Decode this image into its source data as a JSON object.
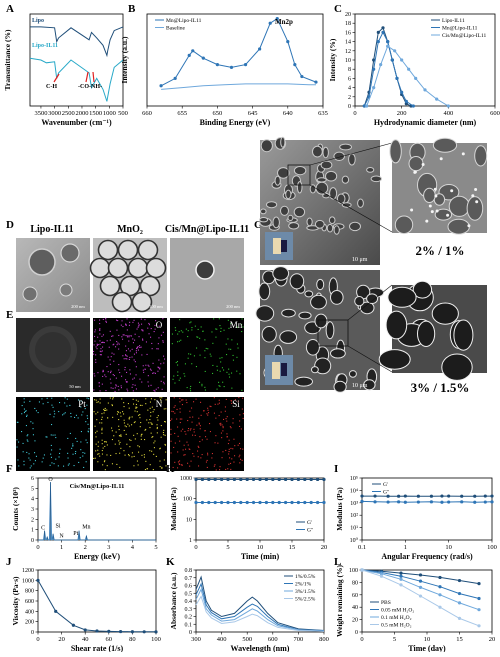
{
  "colors": {
    "dark": "#1f4e79",
    "mid": "#2e75b6",
    "light": "#6fa8dc",
    "pale": "#a9c8e8",
    "red": "#e02020",
    "magenta": "#c03cc8",
    "green": "#2fbf2f",
    "cyan": "#3fc6d4",
    "yellow": "#d6cf3a",
    "darkred": "#d03030"
  },
  "panel_letters": [
    "A",
    "B",
    "C",
    "D",
    "E",
    "F",
    "G",
    "H",
    "I",
    "J",
    "K",
    "L"
  ],
  "panelD": {
    "titles": [
      "Lipo-IL11",
      "MnO₂",
      "Cis/Mn@Lipo-IL11"
    ],
    "scales": [
      "200 nm",
      "100 nm",
      "200 nm"
    ]
  },
  "panelE": {
    "scale": "50 nm",
    "maps": [
      "O",
      "Mn",
      "Pt",
      "N",
      "Si"
    ]
  },
  "panelG": {
    "labels": [
      "2% / 1%",
      "3% / 1.5%"
    ],
    "scales": [
      "10 μm",
      "10 μm"
    ]
  },
  "chart_data": [
    {
      "panel": "A",
      "type": "line",
      "xlabel": "Wavenumber (cm⁻¹)",
      "ylabel": "Transmittance (%)",
      "xlim": [
        3900,
        500
      ],
      "xticks": [
        3500,
        3000,
        2500,
        2000,
        1500,
        1000,
        500
      ],
      "series": [
        {
          "name": "Lipo",
          "x": [
            3900,
            3500,
            3000,
            2925,
            2855,
            2400,
            1740,
            1650,
            1460,
            1230,
            1090,
            1060,
            970,
            820,
            500
          ],
          "y": [
            0.86,
            0.86,
            0.85,
            0.7,
            0.74,
            0.85,
            0.72,
            0.8,
            0.74,
            0.66,
            0.55,
            0.6,
            0.72,
            0.82,
            0.86
          ]
        },
        {
          "name": "Lipo-IL11",
          "x": [
            3900,
            3500,
            3300,
            3000,
            2925,
            2855,
            2400,
            1740,
            1650,
            1540,
            1460,
            1230,
            1090,
            1060,
            970,
            820,
            500
          ],
          "y": [
            0.52,
            0.5,
            0.47,
            0.48,
            0.3,
            0.36,
            0.5,
            0.36,
            0.2,
            0.26,
            0.3,
            0.18,
            0.05,
            0.1,
            0.24,
            0.42,
            0.5
          ]
        }
      ],
      "annotations": [
        "C-H",
        "-CO-NH-"
      ]
    },
    {
      "panel": "B",
      "type": "line",
      "xlabel": "Binding Energy (eV)",
      "ylabel": "Intensity (a.u.)",
      "xlim": [
        660,
        635
      ],
      "xticks": [
        660,
        655,
        650,
        645,
        640,
        635
      ],
      "series": [
        {
          "name": "Mn@Lipo-IL11",
          "x": [
            658,
            656,
            654,
            653.5,
            652,
            650,
            648,
            646,
            644,
            642.5,
            641.5,
            640,
            639,
            638,
            636
          ],
          "y": [
            0.22,
            0.3,
            0.55,
            0.6,
            0.52,
            0.45,
            0.42,
            0.45,
            0.62,
            0.9,
            0.95,
            0.7,
            0.45,
            0.32,
            0.26
          ]
        },
        {
          "name": "Baseline",
          "x": [
            658,
            655,
            652,
            649,
            646,
            643,
            640,
            637,
            636
          ],
          "y": [
            0.18,
            0.2,
            0.22,
            0.23,
            0.24,
            0.24,
            0.24,
            0.23,
            0.23
          ]
        }
      ],
      "annotations": [
        "Mn2p"
      ]
    },
    {
      "panel": "C",
      "type": "line",
      "xlabel": "Hydrodynamic diameter (nm)",
      "ylabel": "Intensity (%)",
      "xlim": [
        0,
        600
      ],
      "ylim": [
        0,
        20
      ],
      "xticks": [
        0,
        200,
        400,
        600
      ],
      "yticks": [
        0,
        2,
        4,
        6,
        8,
        10,
        12,
        14,
        16,
        18,
        20
      ],
      "series": [
        {
          "name": "Lipo-IL11",
          "x": [
            40,
            60,
            80,
            100,
            120,
            140,
            160,
            180,
            200,
            220,
            240
          ],
          "y": [
            0,
            3,
            10,
            16,
            17,
            14,
            10,
            6,
            2.5,
            0.5,
            0
          ]
        },
        {
          "name": "Mn@Lipo-IL11",
          "x": [
            40,
            60,
            80,
            100,
            120,
            140,
            160,
            180,
            200,
            220,
            250
          ],
          "y": [
            0,
            2,
            8,
            14,
            16,
            14,
            10,
            6,
            3,
            1,
            0
          ]
        },
        {
          "name": "Cis/Mn@Lipo-IL11",
          "x": [
            50,
            80,
            110,
            140,
            170,
            200,
            230,
            260,
            300,
            350,
            400
          ],
          "y": [
            0,
            4,
            9,
            13,
            12,
            10,
            8,
            6,
            3.5,
            1.5,
            0
          ]
        }
      ]
    },
    {
      "panel": "F",
      "type": "bar",
      "title": "Cis/Mn@Lipo-IL11",
      "xlabel": "Energy (keV)",
      "ylabel": "Counts (×10³)",
      "xlim": [
        0,
        5
      ],
      "ylim": [
        0,
        6
      ],
      "xticks": [
        0,
        1,
        2,
        3,
        4,
        5
      ],
      "yticks": [
        0,
        1,
        2,
        3,
        4,
        5,
        6
      ],
      "peaks": [
        {
          "label": "C",
          "x": 0.28,
          "y": 0.9
        },
        {
          "label": "O",
          "x": 0.53,
          "y": 5.6
        },
        {
          "label": "Mn",
          "x": 0.64,
          "y": 0.6
        },
        {
          "label": "N",
          "x": 0.39,
          "y": 0.3
        },
        {
          "label": "Si",
          "x": 1.74,
          "y": 0.9
        },
        {
          "label": "Pt",
          "x": 2.05,
          "y": 0.4
        },
        {
          "label": "Mn",
          "x": 5.9,
          "y": 0.0
        }
      ],
      "peak_labels": [
        {
          "text": "O",
          "x": 0.53,
          "y": 5.7
        },
        {
          "text": "C",
          "x": 0.22,
          "y": 1.0
        },
        {
          "text": "Si",
          "x": 0.85,
          "y": 1.2
        },
        {
          "text": "N",
          "x": 1.0,
          "y": 0.25
        },
        {
          "text": "Pt",
          "x": 1.6,
          "y": 0.5
        },
        {
          "text": "Mn",
          "x": 2.05,
          "y": 1.1
        }
      ]
    },
    {
      "panel": "H",
      "type": "line",
      "xlabel": "Time (min)",
      "ylabel": "Modulus (Pa)",
      "xlim": [
        0,
        20
      ],
      "ylim_log": [
        1,
        1000
      ],
      "xticks": [
        0,
        5,
        10,
        15,
        20
      ],
      "yticks": [
        1,
        10,
        100,
        1000
      ],
      "series": [
        {
          "name": "G'",
          "x": [
            0,
            1,
            2,
            3,
            4,
            5,
            6,
            7,
            8,
            9,
            10,
            11,
            12,
            13,
            14,
            15,
            16,
            17,
            18,
            19,
            20
          ],
          "y": [
            850,
            850,
            850,
            850,
            850,
            850,
            850,
            850,
            850,
            850,
            850,
            850,
            850,
            850,
            850,
            850,
            850,
            850,
            850,
            850,
            850
          ]
        },
        {
          "name": "G''",
          "x": [
            0,
            1,
            2,
            3,
            4,
            5,
            6,
            7,
            8,
            9,
            10,
            11,
            12,
            13,
            14,
            15,
            16,
            17,
            18,
            19,
            20
          ],
          "y": [
            65,
            65,
            65,
            65,
            65,
            65,
            65,
            65,
            65,
            65,
            65,
            65,
            65,
            65,
            65,
            65,
            65,
            65,
            65,
            65,
            65
          ]
        }
      ]
    },
    {
      "panel": "I",
      "type": "line",
      "xlabel": "Angular  Frequency (rad/s)",
      "ylabel": "Modulus (Pa)",
      "xlim_log": [
        0.1,
        100
      ],
      "ylim_log": [
        1,
        100000
      ],
      "xticks": [
        0.1,
        1,
        10,
        100
      ],
      "yticks": [
        1,
        10,
        100,
        1000,
        10000,
        100000
      ],
      "series": [
        {
          "name": "G'",
          "x": [
            0.1,
            0.2,
            0.4,
            0.7,
            1,
            2,
            4,
            7,
            10,
            20,
            40,
            70,
            100
          ],
          "y": [
            3500,
            3500,
            3400,
            3400,
            3500,
            3400,
            3400,
            3500,
            3500,
            3400,
            3400,
            3500,
            3500
          ]
        },
        {
          "name": "G''",
          "x": [
            0.1,
            0.2,
            0.4,
            0.7,
            1,
            2,
            4,
            7,
            10,
            20,
            40,
            70,
            100
          ],
          "y": [
            1300,
            1200,
            1150,
            1200,
            1100,
            1150,
            1200,
            1100,
            1150,
            1200,
            1100,
            1150,
            1200
          ]
        }
      ]
    },
    {
      "panel": "J",
      "type": "line",
      "xlabel": "Shear rate (1/s)",
      "ylabel": "Viscosity (Pa·s)",
      "xlim": [
        0,
        100
      ],
      "ylim": [
        0,
        1200
      ],
      "xticks": [
        0,
        20,
        40,
        60,
        80,
        100
      ],
      "yticks": [
        0,
        200,
        400,
        600,
        800,
        1000,
        1200
      ],
      "series": [
        {
          "name": "viscosity",
          "x": [
            0,
            15,
            30,
            40,
            50,
            60,
            70,
            80,
            90,
            100
          ],
          "y": [
            1000,
            400,
            130,
            40,
            20,
            12,
            8,
            5,
            4,
            3
          ]
        }
      ]
    },
    {
      "panel": "K",
      "type": "line",
      "xlabel": "Wavelength (nm)",
      "ylabel": "Absorbance (a.u.)",
      "xlim": [
        300,
        800
      ],
      "ylim": [
        0,
        0.8
      ],
      "xticks": [
        300,
        400,
        500,
        600,
        700,
        800
      ],
      "yticks": [
        0,
        0.1,
        0.2,
        0.3,
        0.4,
        0.5,
        0.6,
        0.7,
        0.8
      ],
      "series": [
        {
          "name": "1%/0.5%",
          "x": [
            300,
            320,
            340,
            360,
            400,
            450,
            500,
            520,
            540,
            580,
            620,
            700,
            800
          ],
          "y": [
            0.55,
            0.71,
            0.4,
            0.28,
            0.2,
            0.24,
            0.4,
            0.45,
            0.4,
            0.24,
            0.12,
            0.04,
            0.02
          ]
        },
        {
          "name": "2%/1%",
          "x": [
            300,
            320,
            340,
            360,
            400,
            450,
            500,
            520,
            540,
            580,
            620,
            700,
            800
          ],
          "y": [
            0.48,
            0.62,
            0.35,
            0.25,
            0.17,
            0.2,
            0.32,
            0.36,
            0.33,
            0.2,
            0.1,
            0.03,
            0.02
          ]
        },
        {
          "name": "3%/1.5%",
          "x": [
            300,
            320,
            340,
            360,
            400,
            450,
            500,
            520,
            540,
            580,
            620,
            700,
            800
          ],
          "y": [
            0.42,
            0.55,
            0.3,
            0.22,
            0.14,
            0.16,
            0.26,
            0.3,
            0.27,
            0.16,
            0.08,
            0.03,
            0.01
          ]
        },
        {
          "name": "5%/2.5%",
          "x": [
            300,
            320,
            340,
            360,
            400,
            450,
            500,
            520,
            540,
            580,
            620,
            700,
            800
          ],
          "y": [
            0.35,
            0.46,
            0.26,
            0.18,
            0.11,
            0.13,
            0.2,
            0.23,
            0.21,
            0.12,
            0.06,
            0.02,
            0.01
          ]
        }
      ]
    },
    {
      "panel": "L",
      "type": "line",
      "xlabel": "Time (day)",
      "ylabel": "Weight remaining (%)",
      "xlim": [
        0,
        20
      ],
      "ylim": [
        0,
        100
      ],
      "xticks": [
        0,
        5,
        10,
        15,
        20
      ],
      "yticks": [
        0,
        20,
        40,
        60,
        80,
        100
      ],
      "series": [
        {
          "name": "PBS",
          "x": [
            0,
            3,
            6,
            9,
            12,
            15,
            18
          ],
          "y": [
            100,
            98,
            95,
            92,
            88,
            83,
            78
          ]
        },
        {
          "name": "0.05 mM H₂O₂",
          "x": [
            0,
            3,
            6,
            9,
            12,
            15,
            18
          ],
          "y": [
            100,
            96,
            90,
            82,
            73,
            62,
            54
          ]
        },
        {
          "name": "0.1 mM H₂O₂",
          "x": [
            0,
            3,
            6,
            9,
            12,
            15,
            18
          ],
          "y": [
            100,
            94,
            85,
            72,
            60,
            47,
            36
          ]
        },
        {
          "name": "0.5 mM H₂O₂",
          "x": [
            0,
            3,
            6,
            9,
            12,
            15,
            18
          ],
          "y": [
            100,
            90,
            76,
            58,
            40,
            22,
            10
          ]
        }
      ]
    }
  ]
}
